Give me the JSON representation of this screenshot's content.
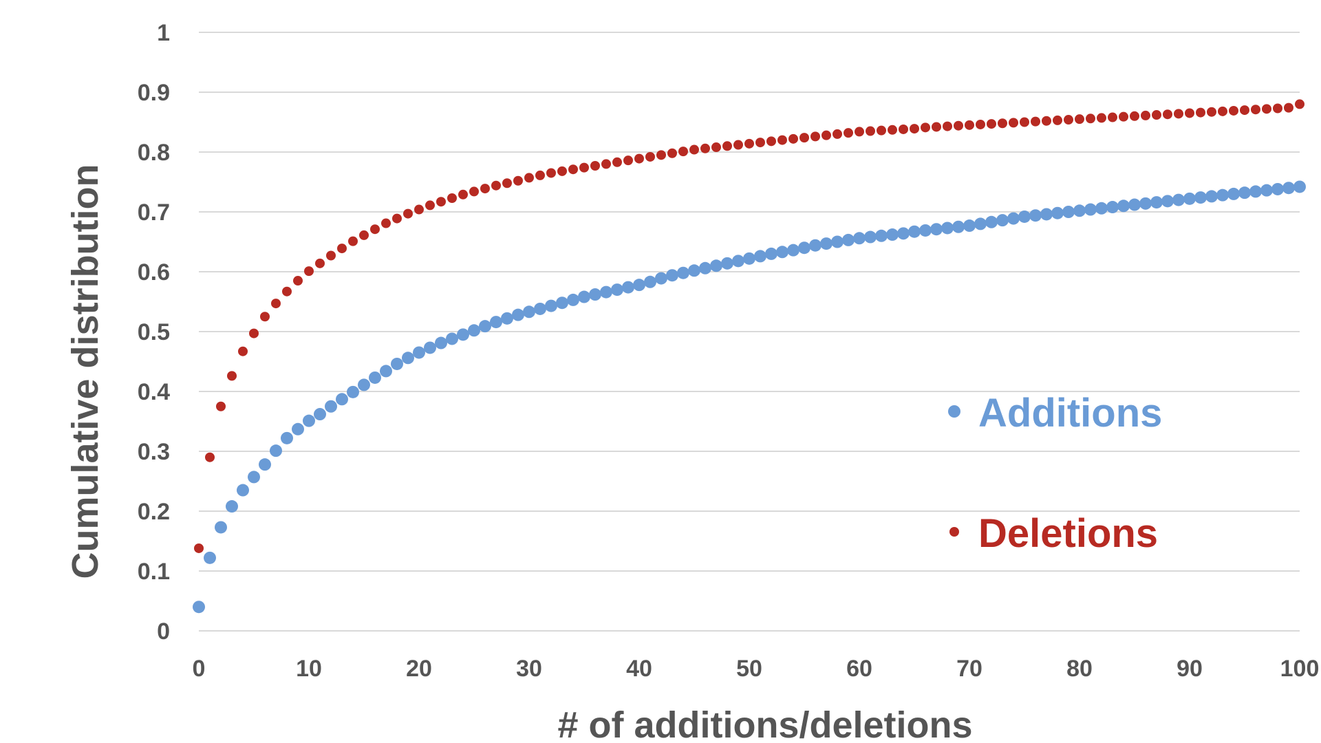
{
  "chart_data": {
    "type": "scatter",
    "xlabel": "# of additions/deletions",
    "ylabel": "Cumulative distribution",
    "xlim": [
      0,
      100
    ],
    "ylim": [
      0,
      1
    ],
    "x_ticks": [
      "0",
      "10",
      "20",
      "30",
      "40",
      "50",
      "60",
      "70",
      "80",
      "90",
      "100"
    ],
    "y_ticks": [
      "0",
      "0.1",
      "0.2",
      "0.3",
      "0.4",
      "0.5",
      "0.6",
      "0.7",
      "0.8",
      "0.9",
      "1"
    ],
    "grid": "horizontal",
    "legend": "center-right",
    "series": [
      {
        "name": "Additions",
        "color": "#6a9bd6",
        "x": [
          0,
          1,
          2,
          3,
          4,
          5,
          6,
          7,
          8,
          9,
          10,
          11,
          12,
          13,
          14,
          15,
          16,
          17,
          18,
          19,
          20,
          21,
          22,
          23,
          24,
          25,
          26,
          27,
          28,
          29,
          30,
          31,
          32,
          33,
          34,
          35,
          36,
          37,
          38,
          39,
          40,
          41,
          42,
          43,
          44,
          45,
          46,
          47,
          48,
          49,
          50,
          51,
          52,
          53,
          54,
          55,
          56,
          57,
          58,
          59,
          60,
          61,
          62,
          63,
          64,
          65,
          66,
          67,
          68,
          69,
          70,
          71,
          72,
          73,
          74,
          75,
          76,
          77,
          78,
          79,
          80,
          81,
          82,
          83,
          84,
          85,
          86,
          87,
          88,
          89,
          90,
          91,
          92,
          93,
          94,
          95,
          96,
          97,
          98,
          99,
          100
        ],
        "y": [
          0.04,
          0.122,
          0.173,
          0.208,
          0.235,
          0.257,
          0.278,
          0.301,
          0.322,
          0.337,
          0.351,
          0.362,
          0.375,
          0.387,
          0.399,
          0.411,
          0.423,
          0.434,
          0.446,
          0.456,
          0.465,
          0.473,
          0.481,
          0.488,
          0.495,
          0.502,
          0.509,
          0.516,
          0.522,
          0.528,
          0.533,
          0.538,
          0.543,
          0.548,
          0.553,
          0.558,
          0.562,
          0.566,
          0.57,
          0.574,
          0.578,
          0.583,
          0.589,
          0.594,
          0.598,
          0.602,
          0.606,
          0.61,
          0.614,
          0.618,
          0.622,
          0.626,
          0.63,
          0.633,
          0.636,
          0.64,
          0.644,
          0.647,
          0.65,
          0.653,
          0.656,
          0.658,
          0.66,
          0.662,
          0.664,
          0.667,
          0.669,
          0.671,
          0.673,
          0.675,
          0.677,
          0.68,
          0.683,
          0.686,
          0.689,
          0.692,
          0.694,
          0.696,
          0.698,
          0.7,
          0.702,
          0.704,
          0.706,
          0.708,
          0.71,
          0.712,
          0.714,
          0.716,
          0.718,
          0.72,
          0.722,
          0.724,
          0.726,
          0.728,
          0.73,
          0.732,
          0.734,
          0.736,
          0.738,
          0.74,
          0.742
        ]
      },
      {
        "name": "Deletions",
        "color": "#b72a22",
        "x": [
          0,
          1,
          2,
          3,
          4,
          5,
          6,
          7,
          8,
          9,
          10,
          11,
          12,
          13,
          14,
          15,
          16,
          17,
          18,
          19,
          20,
          21,
          22,
          23,
          24,
          25,
          26,
          27,
          28,
          29,
          30,
          31,
          32,
          33,
          34,
          35,
          36,
          37,
          38,
          39,
          40,
          41,
          42,
          43,
          44,
          45,
          46,
          47,
          48,
          49,
          50,
          51,
          52,
          53,
          54,
          55,
          56,
          57,
          58,
          59,
          60,
          61,
          62,
          63,
          64,
          65,
          66,
          67,
          68,
          69,
          70,
          71,
          72,
          73,
          74,
          75,
          76,
          77,
          78,
          79,
          80,
          81,
          82,
          83,
          84,
          85,
          86,
          87,
          88,
          89,
          90,
          91,
          92,
          93,
          94,
          95,
          96,
          97,
          98,
          99,
          100
        ],
        "y": [
          0.138,
          0.29,
          0.375,
          0.426,
          0.467,
          0.497,
          0.525,
          0.547,
          0.567,
          0.585,
          0.601,
          0.614,
          0.627,
          0.639,
          0.651,
          0.661,
          0.671,
          0.681,
          0.689,
          0.697,
          0.704,
          0.711,
          0.717,
          0.723,
          0.729,
          0.734,
          0.739,
          0.744,
          0.748,
          0.752,
          0.757,
          0.761,
          0.765,
          0.768,
          0.771,
          0.774,
          0.777,
          0.78,
          0.783,
          0.786,
          0.789,
          0.792,
          0.795,
          0.798,
          0.801,
          0.804,
          0.806,
          0.808,
          0.81,
          0.812,
          0.814,
          0.816,
          0.818,
          0.82,
          0.822,
          0.824,
          0.826,
          0.828,
          0.83,
          0.832,
          0.834,
          0.835,
          0.836,
          0.837,
          0.838,
          0.839,
          0.841,
          0.842,
          0.843,
          0.844,
          0.845,
          0.846,
          0.847,
          0.848,
          0.849,
          0.85,
          0.851,
          0.852,
          0.853,
          0.854,
          0.855,
          0.856,
          0.857,
          0.858,
          0.859,
          0.86,
          0.861,
          0.862,
          0.863,
          0.864,
          0.865,
          0.866,
          0.867,
          0.868,
          0.869,
          0.87,
          0.871,
          0.872,
          0.873,
          0.874,
          0.88
        ]
      }
    ]
  }
}
